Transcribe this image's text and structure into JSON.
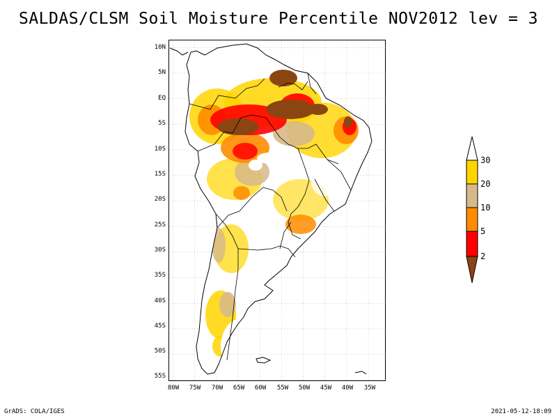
{
  "title": "SALDAS/CLSM Soil Moisture Percentile NOV2012 lev = 3",
  "footer": {
    "left": "GrADS: COLA/IGES",
    "right": "2021-05-12-18:09"
  },
  "axes": {
    "lon_labels": [
      "80W",
      "75W",
      "70W",
      "65W",
      "60W",
      "55W",
      "50W",
      "45W",
      "40W",
      "35W"
    ],
    "lat_labels": [
      "10N",
      "5N",
      "EQ",
      "5S",
      "10S",
      "15S",
      "20S",
      "25S",
      "30S",
      "35S",
      "40S",
      "45S",
      "50S",
      "55S"
    ]
  },
  "colorbar": {
    "labels": [
      "30",
      "20",
      "10",
      "5",
      "2"
    ],
    "colors": {
      "above30": "#ffffff",
      "c20_30": "#ffd500",
      "c10_20": "#d7b989",
      "c5_10": "#ff8c00",
      "c2_5": "#ff0000",
      "below2": "#8b4513"
    }
  },
  "map": {
    "region": "South America",
    "coastline_color": "#000000",
    "grid_color": "#999999"
  }
}
